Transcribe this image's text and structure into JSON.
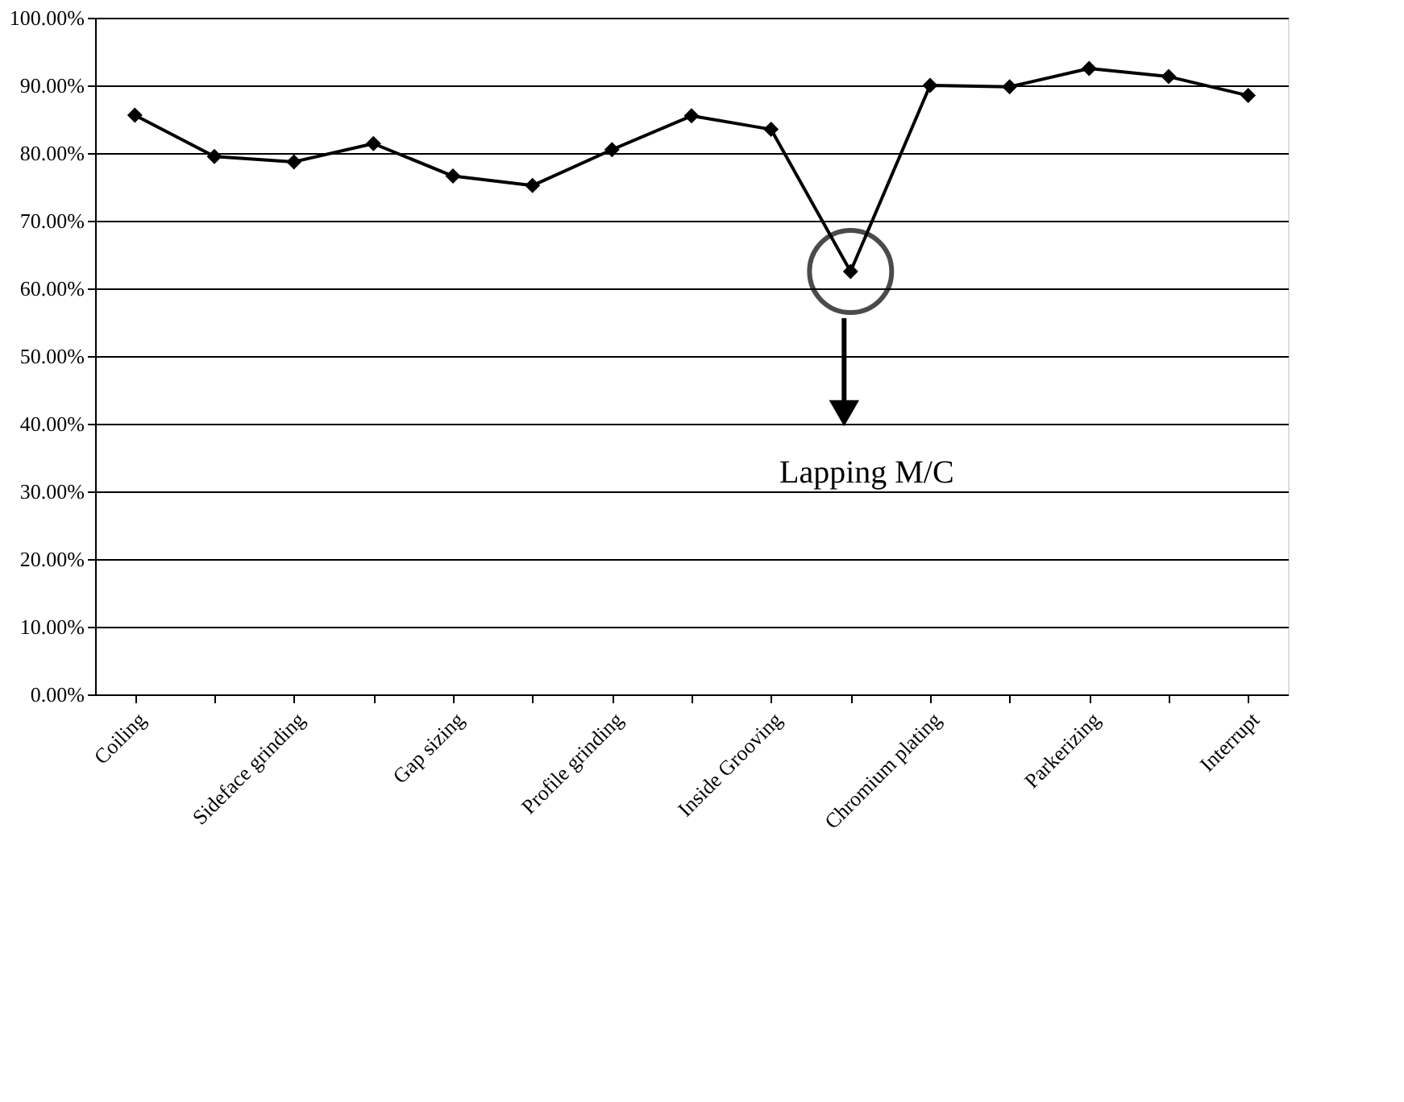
{
  "chart_data": {
    "type": "line",
    "categories": [
      "Coiling",
      null,
      "Sideface grinding",
      null,
      "Gap sizing",
      null,
      "Profile grinding",
      null,
      "Inside Grooving",
      null,
      "Chromium plating",
      null,
      "Parkerizing",
      null,
      "Interrupt"
    ],
    "series": [
      {
        "color": "#000000",
        "values": [
          85.6,
          79.5,
          78.7,
          81.4,
          76.6,
          75.2,
          80.5,
          85.5,
          83.5,
          62.5,
          90,
          89.8,
          92.5,
          91.3,
          88.5
        ]
      }
    ],
    "ylim": [
      0,
      100
    ],
    "yticks": [
      {
        "value": 0,
        "label": "0.00%"
      },
      {
        "value": 10,
        "label": "10.00%"
      },
      {
        "value": 20,
        "label": "20.00%"
      },
      {
        "value": 30,
        "label": "30.00%"
      },
      {
        "value": 40,
        "label": "40.00%"
      },
      {
        "value": 50,
        "label": "50.00%"
      },
      {
        "value": 60,
        "label": "60.00%"
      },
      {
        "value": 70,
        "label": "70.00%"
      },
      {
        "value": 80,
        "label": "80.00%"
      },
      {
        "value": 90,
        "label": "90.00%"
      },
      {
        "value": 100,
        "label": "100.00%"
      }
    ],
    "annotations": [
      "Lapping M/C"
    ],
    "grid": "y",
    "marker": "diamond",
    "line_style": "solid"
  }
}
